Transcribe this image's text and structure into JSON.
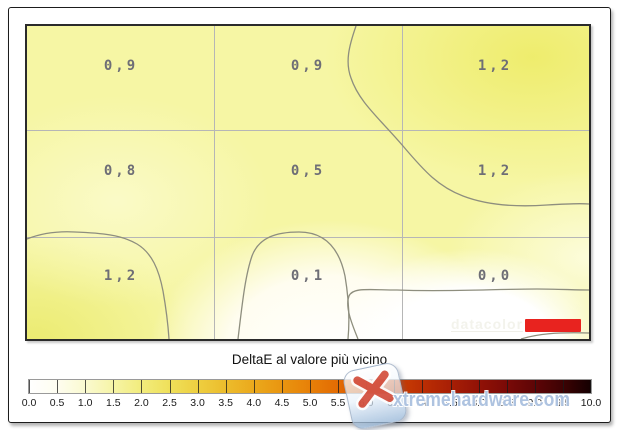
{
  "chart_data": {
    "type": "heatmap",
    "title": "DeltaE al valore più vicino",
    "grid": [
      3,
      3
    ],
    "values": [
      [
        0.9,
        0.9,
        1.2
      ],
      [
        0.8,
        0.5,
        1.2
      ],
      [
        1.2,
        0.1,
        0.0
      ]
    ],
    "value_labels": [
      [
        "0,9",
        "0,9",
        "1,2"
      ],
      [
        "0,8",
        "0,5",
        "1,2"
      ],
      [
        "1,2",
        "0,1",
        "0,0"
      ]
    ],
    "colorbar": {
      "min": 0.0,
      "max": 10.0,
      "step": 0.5,
      "ticks": [
        "0.0",
        "0.5",
        "1.0",
        "1.5",
        "2.0",
        "2.5",
        "3.0",
        "3.5",
        "4.0",
        "4.5",
        "5.0",
        "5.5",
        "6.0",
        "6.5",
        "7.0",
        "7.5",
        "8.0",
        "8.5",
        "9.0",
        "9.5",
        "10.0"
      ],
      "color_stops": [
        "#ffffff",
        "#f6f4a6",
        "#efe05a",
        "#eba91c",
        "#e78008",
        "#da5502",
        "#bb2e04",
        "#921206",
        "#5e0506",
        "#140001"
      ]
    },
    "legend_position": "bottom",
    "grid_lines": true
  },
  "plot": {
    "cell_label_color": "#6e6e76",
    "contour_color": "#8e8e7e"
  },
  "watermarks": {
    "datacolor": {
      "text": "datacolor",
      "logo_color": "#e8231f"
    },
    "site": {
      "text": "xtremehardware.com"
    }
  }
}
